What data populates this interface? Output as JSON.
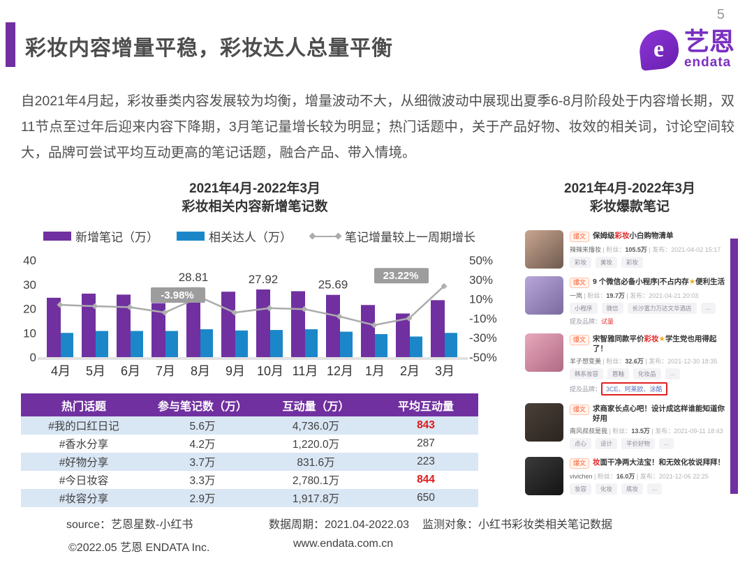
{
  "header": {
    "title": "彩妆内容增量平稳，彩妆达人总量平衡",
    "logo_brand": "艺恩",
    "logo_sub": "endata",
    "logo_glyph": "e",
    "accent_color": "#7030a0"
  },
  "intro": "自2021年4月起，彩妆垂类内容发展较为均衡，增量波动不大，从细微波动中展现出夏季6-8月阶段处于内容增长期，双11节点至过年后迎来内容下降期，3月笔记量增长较为明显；热门话题中，关于产品好物、妆效的相关词，讨论空间较大，品牌可尝试平均互动更高的笔记话题，融合产品、带入情境。",
  "left_chart": {
    "title_line1": "2021年4月-2022年3月",
    "title_line2": "彩妆相关内容新增笔记数",
    "legend": [
      {
        "label": "新增笔记（万）",
        "color": "#7030a0",
        "type": "bar"
      },
      {
        "label": "相关达人（万）",
        "color": "#1b87c9",
        "type": "bar"
      },
      {
        "label": "笔记增量较上一周期增长",
        "color": "#ababab",
        "type": "line"
      }
    ]
  },
  "chart_data": {
    "type": "bar",
    "subtype": "grouped-bars-with-line",
    "title": "2021年4月-2022年3月 彩妆相关内容新增笔记数",
    "categories": [
      "4月",
      "5月",
      "6月",
      "7月",
      "8月",
      "9月",
      "10月",
      "11月",
      "12月",
      "1月",
      "2月",
      "3月"
    ],
    "series": [
      {
        "name": "新增笔记（万）",
        "type": "bar",
        "color": "#7030a0",
        "values": [
          24.5,
          26.2,
          25.8,
          22.3,
          28.81,
          27.0,
          27.92,
          27.2,
          25.69,
          21.5,
          18.0,
          23.5
        ],
        "labels": [
          null,
          null,
          null,
          null,
          "28.81",
          null,
          "27.92",
          null,
          "25.69",
          null,
          null,
          null
        ]
      },
      {
        "name": "相关达人（万）",
        "type": "bar",
        "color": "#1b87c9",
        "values": [
          10.0,
          10.8,
          10.8,
          10.8,
          11.5,
          11.0,
          11.2,
          11.5,
          10.5,
          9.5,
          8.5,
          10.0
        ]
      },
      {
        "name": "笔记增量较上一周期增长",
        "type": "line",
        "color": "#ababab",
        "unit": "%",
        "values": [
          4.0,
          2.5,
          1.5,
          -3.98,
          12.0,
          -4.0,
          0.5,
          -0.5,
          -8.0,
          -17.0,
          -10.0,
          23.22
        ],
        "point_labels": [
          null,
          null,
          null,
          "-3.98%",
          null,
          null,
          null,
          null,
          null,
          null,
          null,
          "23.22%"
        ]
      }
    ],
    "left_axis": {
      "ticks": [
        0,
        10,
        20,
        30,
        40
      ],
      "min": 0,
      "max": 40
    },
    "right_axis": {
      "labels": [
        "50%",
        "30%",
        "10%",
        "-10%",
        "-30%",
        "-50%"
      ],
      "min": -50,
      "max": 50
    },
    "grid": false,
    "legend_position": "top",
    "xlabel": "",
    "ylabel": ""
  },
  "table": {
    "headers": [
      "热门话题",
      "参与笔记数（万）",
      "互动量（万）",
      "平均互动量"
    ],
    "rows": [
      {
        "topic": "#我的口红日记",
        "notes": "5.6万",
        "interactions": "4,736.0万",
        "avg": "843",
        "avg_red": true
      },
      {
        "topic": "#香水分享",
        "notes": "4.2万",
        "interactions": "1,220.0万",
        "avg": "287",
        "avg_red": false
      },
      {
        "topic": "#好物分享",
        "notes": "3.7万",
        "interactions": "831.6万",
        "avg": "223",
        "avg_red": false
      },
      {
        "topic": "#今日妆容",
        "notes": "3.3万",
        "interactions": "2,780.1万",
        "avg": "844",
        "avg_red": true
      },
      {
        "topic": "#妆容分享",
        "notes": "2.9万",
        "interactions": "1,917.8万",
        "avg": "650",
        "avg_red": false
      }
    ]
  },
  "right_panel": {
    "title_line1": "2021年4月-2022年3月",
    "title_line2": "彩妆爆款笔记",
    "fans_label": "粉丝：",
    "pub_label": "发布：",
    "brand_label": "提及品牌：",
    "cards": [
      {
        "badge": "爆文",
        "title": [
          {
            "t": "保姆级"
          },
          {
            "t": "彩妆",
            "red": true
          },
          {
            "t": "小白购物清单"
          }
        ],
        "author": "辣辣来撸妆",
        "fans": "105.5万",
        "date": "2021-04-02 15:17",
        "tags": [
          "彩妆",
          "美妆",
          "彩妆"
        ],
        "thumb": [
          "#caa58f",
          "#6e5a50"
        ]
      },
      {
        "badge": "爆文",
        "title": [
          {
            "t": "9 个微信必备小程序|不占内存"
          },
          {
            "t": "★",
            "gold": true
          },
          {
            "t": "便利生活"
          }
        ],
        "author": "一岚",
        "fans": "19.7万",
        "date": "2021-04-21 20:03",
        "tags": [
          "小程序",
          "微信",
          "长沙富力万达文华酒店",
          "..."
        ],
        "brand": {
          "text": "试量",
          "red": true,
          "boxed": false
        },
        "thumb": [
          "#b8a6d9",
          "#7a6a9e"
        ]
      },
      {
        "badge": "爆文",
        "title": [
          {
            "t": "宋智雅同款平价"
          },
          {
            "t": "彩妆",
            "red": true
          },
          {
            "t": "★",
            "gold": true
          },
          {
            "t": "学生党也用得起了！"
          }
        ],
        "author": "羊子想变美",
        "fans": "32.6万",
        "date": "2021-12-30 18:35",
        "tags": [
          "韩系妆容",
          "唇釉",
          "化妆品",
          "..."
        ],
        "brand": {
          "text": "3CE、珂莱欧、涂酷",
          "red": false,
          "boxed": true
        },
        "thumb": [
          "#e8a8bb",
          "#b06a85"
        ]
      },
      {
        "badge": "爆文",
        "title": [
          {
            "t": "求商家长点心吧！设计成这样谁能知道你好用"
          }
        ],
        "author": "南风叔叔是我",
        "fans": "13.5万",
        "date": "2021-09-11 18:43",
        "tags": [
          "点心",
          "设计",
          "平价好物",
          "..."
        ],
        "thumb": [
          "#4a4038",
          "#2a241f"
        ]
      },
      {
        "badge": "爆文",
        "title": [
          {
            "t": "妆",
            "red": true
          },
          {
            "t": "面干净两大法宝！和无效化妆说拜拜！"
          }
        ],
        "author": "vivichen",
        "fans": "16.0万",
        "date": "2021-12-06 22:25",
        "tags": [
          "妆容",
          "化妆",
          "底妆",
          "..."
        ],
        "thumb": [
          "#3a3a3a",
          "#141414"
        ]
      }
    ]
  },
  "footer": {
    "source": "source：艺恩星数-小红书",
    "period": "数据周期：2021.04-2022.03",
    "monitor": "监测对象：小红书彩妆类相关笔记数据",
    "copyright": "©2022.05 艺恩 ENDATA Inc.",
    "website": "www.endata.com.cn"
  },
  "page_number": "5"
}
